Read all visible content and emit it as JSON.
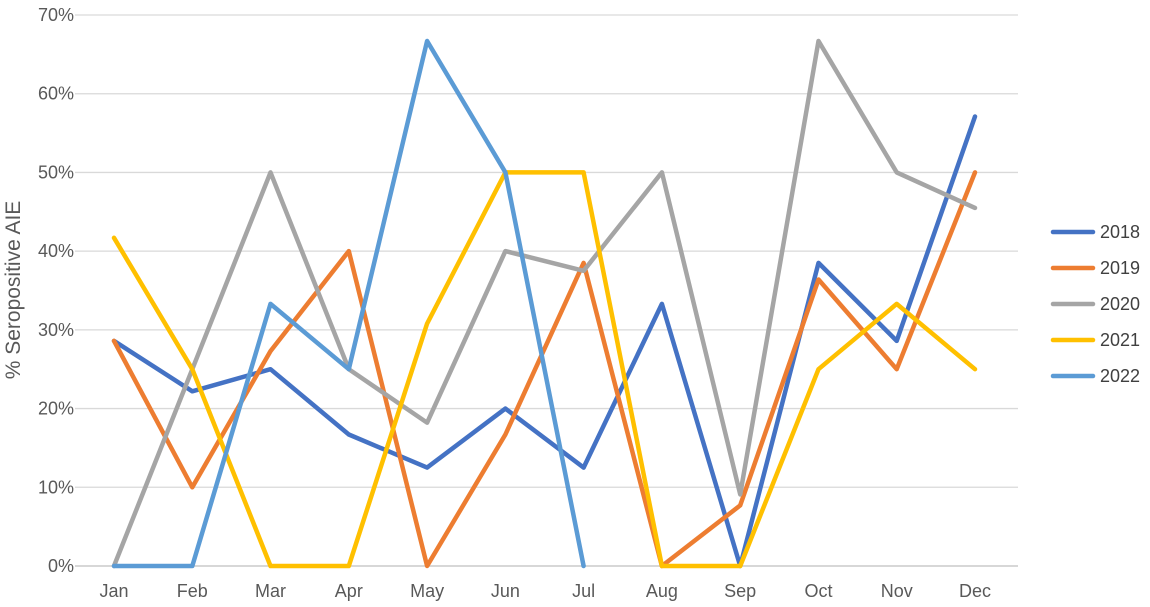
{
  "chart_data": {
    "type": "line",
    "title": "",
    "xlabel": "",
    "ylabel": "% Seropositive AIE",
    "categories": [
      "Jan",
      "Feb",
      "Mar",
      "Apr",
      "May",
      "Jun",
      "Jul",
      "Aug",
      "Sep",
      "Oct",
      "Nov",
      "Dec"
    ],
    "yticks": [
      "0%",
      "10%",
      "20%",
      "30%",
      "40%",
      "50%",
      "60%",
      "70%"
    ],
    "ylim": [
      0,
      70
    ],
    "grid": true,
    "legend_position": "right",
    "series": [
      {
        "name": "2018",
        "color": "#4472C4",
        "values": [
          28.6,
          22.2,
          25.0,
          16.7,
          12.5,
          20.0,
          12.5,
          33.3,
          0.0,
          38.5,
          28.6,
          57.1
        ]
      },
      {
        "name": "2019",
        "color": "#ED7D31",
        "values": [
          28.6,
          10.0,
          27.3,
          40.0,
          0.0,
          16.7,
          38.5,
          0.0,
          7.7,
          36.4,
          25.0,
          50.0
        ]
      },
      {
        "name": "2020",
        "color": "#A5A5A5",
        "values": [
          0.0,
          25.0,
          50.0,
          25.0,
          18.2,
          40.0,
          37.5,
          50.0,
          9.1,
          66.7,
          50.0,
          45.5
        ]
      },
      {
        "name": "2021",
        "color": "#FFC000",
        "values": [
          41.7,
          25.0,
          0.0,
          0.0,
          30.8,
          50.0,
          50.0,
          0.0,
          0.0,
          25.0,
          33.3,
          25.0
        ]
      },
      {
        "name": "2022",
        "color": "#5B9BD5",
        "values": [
          0.0,
          0.0,
          33.3,
          25.0,
          66.7,
          50.0,
          0.0,
          null,
          null,
          null,
          null,
          null
        ]
      }
    ]
  }
}
